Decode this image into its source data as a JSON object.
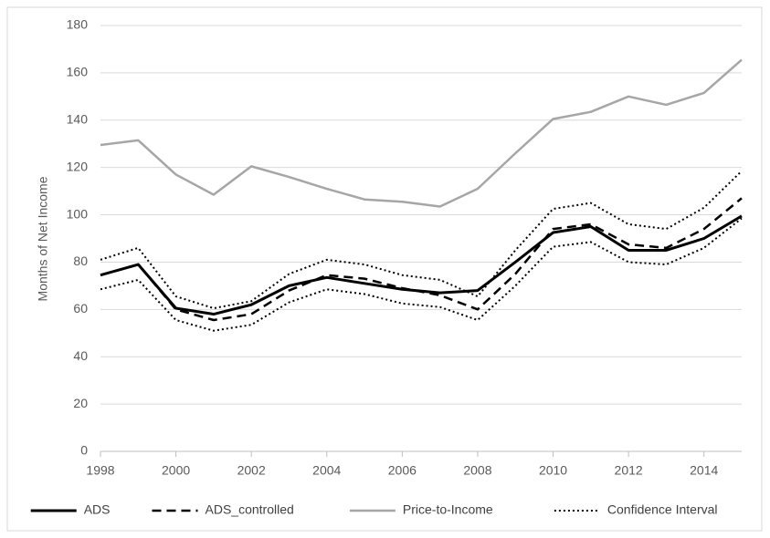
{
  "chart_data": {
    "type": "line",
    "y_label": "Months of Net Income",
    "x": [
      1998,
      1999,
      2000,
      2001,
      2002,
      2003,
      2004,
      2005,
      2006,
      2007,
      2008,
      2009,
      2010,
      2011,
      2012,
      2013,
      2014,
      2015
    ],
    "xlim": [
      1998,
      2015
    ],
    "xticks": [
      1998,
      2000,
      2002,
      2004,
      2006,
      2008,
      2010,
      2012,
      2014
    ],
    "ylim": [
      0,
      180
    ],
    "yticks": [
      0,
      20,
      40,
      60,
      80,
      100,
      120,
      140,
      160,
      180
    ],
    "grid": true,
    "legend": "bottom",
    "series": [
      {
        "name": "ADS",
        "color": "#000000",
        "style": "solid",
        "values": [
          74.5,
          79,
          60.5,
          58,
          62,
          70,
          73.5,
          71,
          68.5,
          67,
          68,
          80,
          92.5,
          95,
          85,
          85,
          90,
          99.5
        ]
      },
      {
        "name": "ADS_controlled",
        "color": "#000000",
        "style": "dashed",
        "values": [
          74.5,
          79,
          60,
          55.5,
          58,
          68,
          74.5,
          73,
          69,
          66,
          60,
          75,
          94,
          96,
          87.5,
          86,
          94,
          107
        ]
      },
      {
        "name": "Price-to-Income",
        "color": "#a6a6a6",
        "style": "solid",
        "values": [
          129.5,
          131.5,
          117,
          108.5,
          120.5,
          116,
          111,
          106.5,
          105.5,
          103.5,
          111,
          126,
          140.5,
          143.5,
          150,
          146.5,
          151.5,
          165.5
        ]
      },
      {
        "name": "Confidence Interval",
        "color": "#000000",
        "style": "dotted",
        "upper": [
          81,
          86,
          65.5,
          60.5,
          63.5,
          75,
          81,
          79,
          74.5,
          72.5,
          65.5,
          85,
          102.5,
          105,
          96,
          94,
          103,
          118.5
        ],
        "lower": [
          68.5,
          72.5,
          55.5,
          51,
          53.5,
          63,
          68.5,
          66.5,
          62.5,
          61,
          55.5,
          70,
          86.5,
          88.5,
          80,
          79,
          86,
          98.5
        ]
      }
    ]
  }
}
